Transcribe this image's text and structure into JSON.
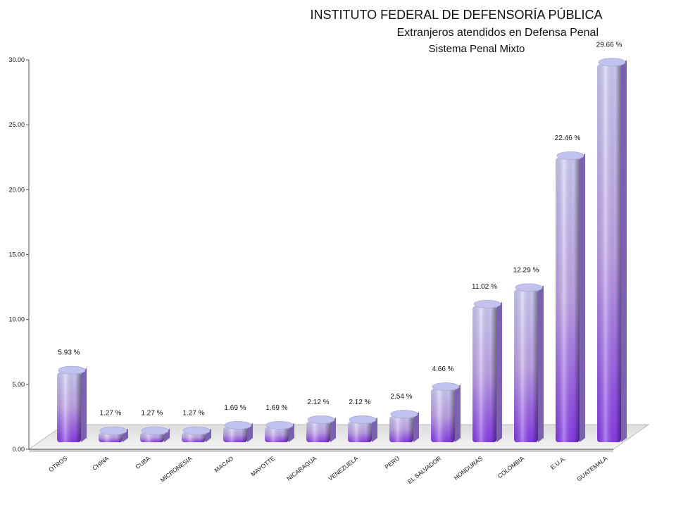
{
  "chart_data": {
    "type": "bar",
    "title": "INSTITUTO FEDERAL DE DEFENSORÍA PÚBLICA",
    "subtitle": "Extranjeros atendidos en Defensa Penal",
    "subtitle2": "Sistema Penal Mixto",
    "xlabel": "",
    "ylabel": "",
    "ylim": [
      0,
      30
    ],
    "yticks": [
      "0.00",
      "5.00",
      "10.00",
      "15.00",
      "20.00",
      "25.00",
      "30.00"
    ],
    "grid": false,
    "legend": "none",
    "bar_color_top": "#c8c8f8",
    "bar_color_bottom": "#8a3cf0",
    "categories": [
      "OTROS",
      "CHINA",
      "CUBA",
      "MICRONESIA",
      "MACAO",
      "MAYOTTE",
      "NICARAGUA",
      "VENEZUELA",
      "PERÚ",
      "EL SALVADOR",
      "HONDURAS",
      "COLOMBIA",
      "E.U.A.",
      "GUATEMALA"
    ],
    "values": [
      5.93,
      1.27,
      1.27,
      1.27,
      1.69,
      1.69,
      2.12,
      2.12,
      2.54,
      4.66,
      11.02,
      12.29,
      22.46,
      29.66
    ],
    "data_labels": [
      "5.93 %",
      "1.27 %",
      "1.27 %",
      "1.27 %",
      "1.69 %",
      "1.69 %",
      "2.12 %",
      "2.12 %",
      "2.54 %",
      "4.66 %",
      "11.02 %",
      "12.29 %",
      "22.46 %",
      "29.66 %"
    ]
  }
}
